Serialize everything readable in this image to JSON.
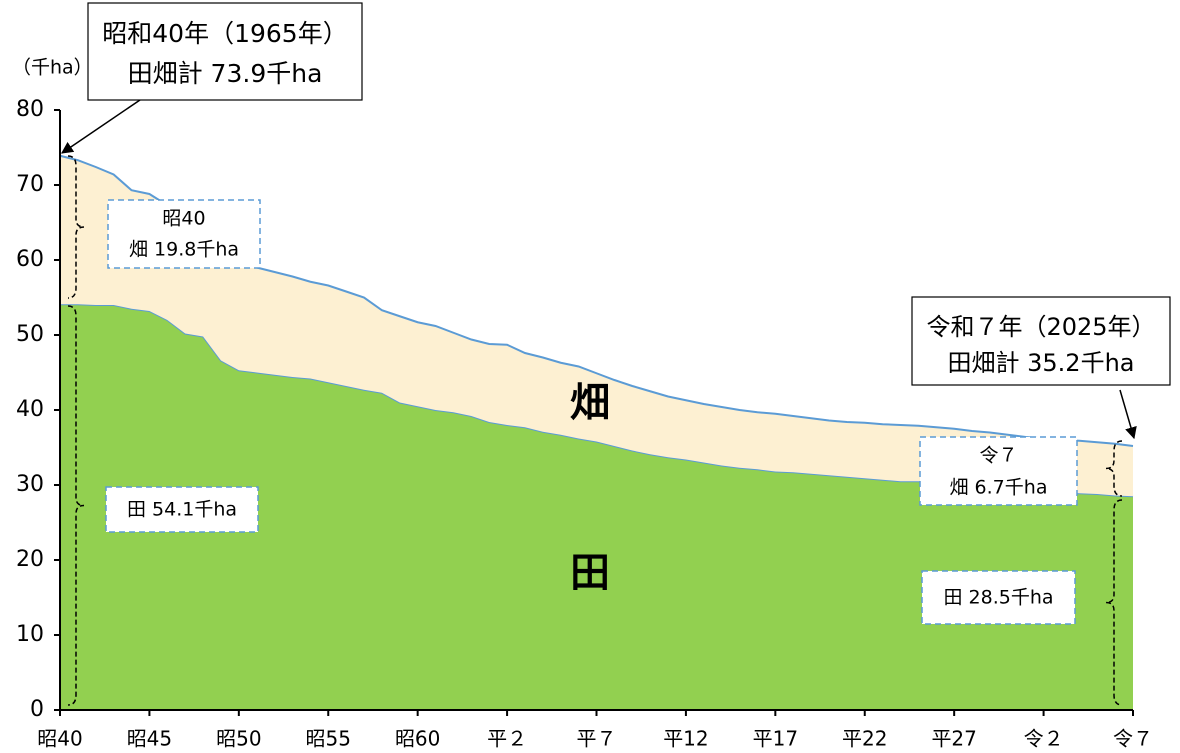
{
  "chart_data": {
    "type": "stacked_area",
    "y_label": "（千ha）",
    "categories": [
      "昭40",
      null,
      null,
      null,
      null,
      "昭45",
      null,
      null,
      null,
      null,
      "昭50",
      null,
      null,
      null,
      null,
      "昭55",
      null,
      null,
      null,
      null,
      "昭60",
      null,
      null,
      null,
      null,
      "平２",
      null,
      null,
      null,
      null,
      "平７",
      null,
      null,
      null,
      null,
      "平12",
      null,
      null,
      null,
      null,
      "平17",
      null,
      null,
      null,
      null,
      "平22",
      null,
      null,
      null,
      null,
      "平27",
      null,
      null,
      null,
      null,
      "令２",
      null,
      null,
      null,
      null,
      "令７"
    ],
    "series": [
      {
        "name": "田",
        "color": "#92d050",
        "values": [
          54.1,
          54.1,
          54.0,
          54.0,
          53.5,
          53.2,
          52.0,
          50.2,
          49.8,
          46.6,
          45.3,
          45.0,
          44.7,
          44.4,
          44.2,
          43.7,
          43.2,
          42.7,
          42.3,
          41.0,
          40.5,
          40.0,
          39.7,
          39.2,
          38.4,
          38.0,
          37.7,
          37.1,
          36.7,
          36.2,
          35.8,
          35.2,
          34.6,
          34.1,
          33.7,
          33.4,
          33.0,
          32.6,
          32.3,
          32.1,
          31.8,
          31.7,
          31.5,
          31.3,
          31.1,
          30.9,
          30.7,
          30.5,
          30.5,
          30.4,
          30.3,
          30.1,
          29.9,
          29.7,
          29.5,
          29.3,
          29.1,
          28.9,
          28.8,
          28.6,
          28.5
        ]
      },
      {
        "name": "畑",
        "color": "#fdf0d2",
        "values": [
          19.8,
          19.2,
          18.4,
          17.4,
          15.8,
          15.6,
          15.3,
          15.3,
          13.7,
          14.8,
          14.5,
          14.0,
          13.7,
          13.4,
          12.9,
          12.9,
          12.6,
          12.3,
          11.0,
          11.5,
          11.2,
          11.2,
          10.6,
          10.2,
          10.4,
          10.7,
          9.9,
          9.9,
          9.6,
          9.6,
          9.1,
          8.8,
          8.6,
          8.4,
          8.1,
          7.9,
          7.8,
          7.8,
          7.7,
          7.6,
          7.7,
          7.5,
          7.4,
          7.3,
          7.3,
          7.4,
          7.4,
          7.5,
          7.4,
          7.3,
          7.2,
          7.1,
          7.1,
          7.0,
          6.9,
          6.9,
          6.9,
          7.0,
          6.9,
          6.9,
          6.7
        ]
      }
    ],
    "line_color": "#5b9bd5",
    "ylim": [
      0,
      80
    ],
    "yticks": [
      0,
      10,
      20,
      30,
      40,
      50,
      60,
      70,
      80
    ],
    "annotations": [
      {
        "lines": [
          "昭和40年（1965年）",
          "田畑計 73.9千ha"
        ]
      },
      {
        "lines": [
          "昭40",
          "畑 19.8千ha"
        ]
      },
      {
        "lines": [
          "田 54.1千ha"
        ]
      },
      {
        "lines": [
          "令和７年（2025年）",
          "田畑計 35.2千ha"
        ]
      },
      {
        "lines": [
          "令７",
          "畑 6.7千ha"
        ]
      },
      {
        "lines": [
          "田 28.5千ha"
        ]
      }
    ]
  }
}
